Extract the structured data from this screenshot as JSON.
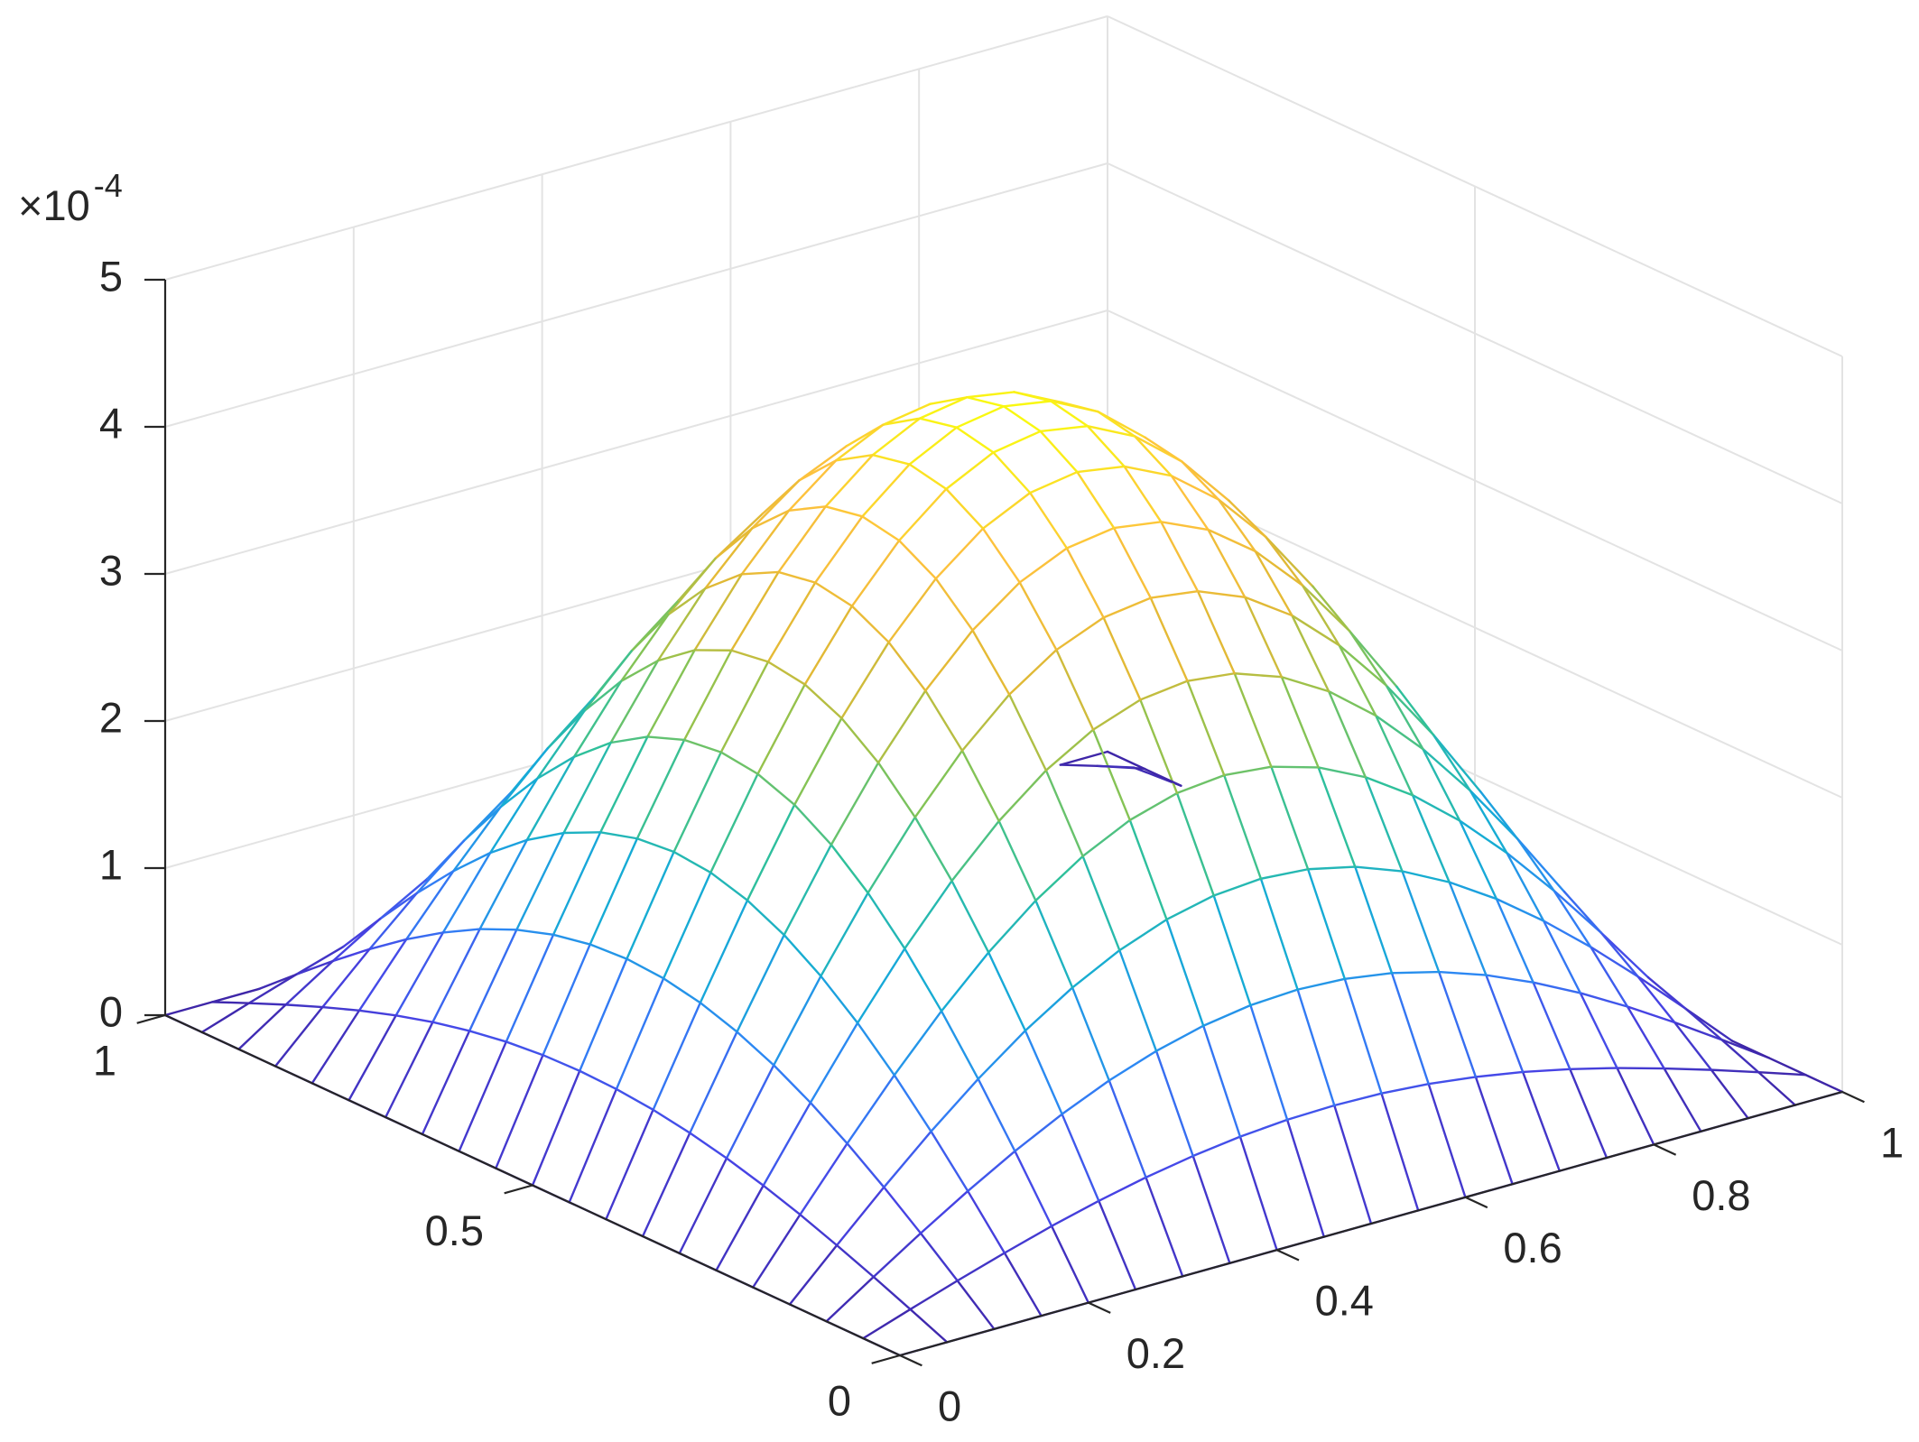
{
  "chart_data": {
    "type": "mesh",
    "x": [
      0,
      0.05,
      0.1,
      0.15,
      0.2,
      0.25,
      0.3,
      0.35,
      0.4,
      0.45,
      0.5,
      0.55,
      0.6,
      0.65,
      0.7,
      0.75,
      0.8,
      0.85,
      0.9,
      0.95,
      1
    ],
    "y": [
      0,
      0.05,
      0.1,
      0.15,
      0.2,
      0.25,
      0.3,
      0.35,
      0.4,
      0.45,
      0.5,
      0.55,
      0.6,
      0.65,
      0.7,
      0.75,
      0.8,
      0.85,
      0.9,
      0.95,
      1
    ],
    "z": [
      [
        0,
        0,
        0,
        0,
        0,
        0,
        0,
        0,
        0,
        0,
        0,
        0,
        0,
        0,
        0,
        0,
        0,
        0,
        0,
        0,
        0
      ],
      [
        0,
        0.108,
        0.213,
        0.312,
        0.405,
        0.487,
        0.557,
        0.613,
        0.655,
        0.68,
        0.688,
        0.68,
        0.655,
        0.613,
        0.557,
        0.487,
        0.405,
        0.312,
        0.213,
        0.108,
        0
      ],
      [
        0,
        0.213,
        0.42,
        0.617,
        0.799,
        0.961,
        1.1,
        1.211,
        1.293,
        1.343,
        1.36,
        1.343,
        1.293,
        1.211,
        1.1,
        0.961,
        0.799,
        0.617,
        0.42,
        0.213,
        0
      ],
      [
        0,
        0.312,
        0.617,
        0.907,
        1.174,
        1.413,
        1.616,
        1.78,
        1.9,
        1.973,
        1.998,
        1.973,
        1.9,
        1.78,
        1.616,
        1.413,
        1.174,
        0.907,
        0.617,
        0.312,
        0
      ],
      [
        0,
        0.405,
        0.799,
        1.174,
        1.52,
        1.829,
        2.092,
        2.304,
        2.46,
        2.554,
        2.586,
        2.554,
        2.46,
        2.304,
        2.092,
        1.829,
        1.52,
        1.174,
        0.799,
        0.405,
        0
      ],
      [
        0,
        0.487,
        0.961,
        1.413,
        1.829,
        2.2,
        2.517,
        2.772,
        2.959,
        3.073,
        3.111,
        3.073,
        2.959,
        2.772,
        2.517,
        2.2,
        1.829,
        1.413,
        0.961,
        0.487,
        0
      ],
      [
        0,
        0.557,
        1.1,
        1.616,
        2.092,
        2.517,
        2.88,
        3.172,
        3.386,
        3.516,
        3.56,
        3.516,
        3.386,
        3.172,
        2.88,
        2.517,
        2.092,
        1.616,
        1.1,
        0.557,
        0
      ],
      [
        0,
        0.613,
        1.211,
        1.78,
        2.304,
        2.772,
        3.172,
        3.493,
        3.729,
        3.872,
        3.92,
        3.872,
        3.729,
        3.493,
        3.172,
        2.772,
        2.304,
        1.78,
        1.211,
        0.613,
        0
      ],
      [
        0,
        0.655,
        1.293,
        1.9,
        2.46,
        2.959,
        3.386,
        3.729,
        3.98,
        4.133,
        4.185,
        4.133,
        3.98,
        3.729,
        3.386,
        2.959,
        2.46,
        1.9,
        1.293,
        0.655,
        0
      ],
      [
        0,
        0.68,
        1.343,
        1.973,
        2.554,
        3.073,
        3.516,
        3.872,
        4.133,
        4.292,
        4.346,
        4.292,
        4.133,
        3.872,
        3.516,
        3.073,
        2.554,
        1.973,
        1.343,
        0.68,
        0
      ],
      [
        0,
        0.688,
        1.36,
        1.998,
        2.586,
        3.111,
        3.56,
        3.92,
        4.185,
        4.346,
        4.4,
        4.346,
        4.185,
        3.92,
        3.56,
        3.111,
        2.586,
        1.998,
        1.36,
        0.688,
        0
      ],
      [
        0,
        0.68,
        1.343,
        1.973,
        2.554,
        3.073,
        3.516,
        3.872,
        4.133,
        4.292,
        4.346,
        4.292,
        4.133,
        3.872,
        3.516,
        3.073,
        2.554,
        1.973,
        1.343,
        0.68,
        0
      ],
      [
        0,
        0.655,
        1.293,
        1.9,
        2.46,
        2.959,
        3.386,
        3.729,
        3.98,
        4.133,
        4.185,
        4.133,
        3.98,
        3.729,
        3.386,
        2.959,
        2.46,
        1.9,
        1.293,
        0.655,
        0
      ],
      [
        0,
        0.613,
        1.211,
        1.78,
        2.304,
        2.772,
        3.172,
        3.493,
        3.729,
        3.872,
        3.92,
        3.872,
        3.729,
        3.493,
        3.172,
        2.772,
        2.304,
        1.78,
        1.211,
        0.613,
        0
      ],
      [
        0,
        0.557,
        1.1,
        1.616,
        2.092,
        2.517,
        2.88,
        3.172,
        3.386,
        3.516,
        3.56,
        3.516,
        3.386,
        3.172,
        2.88,
        2.517,
        2.092,
        1.616,
        1.1,
        0.557,
        0
      ],
      [
        0,
        0.487,
        0.961,
        1.413,
        1.829,
        2.2,
        2.517,
        2.772,
        2.959,
        3.073,
        3.111,
        3.073,
        2.959,
        2.772,
        2.517,
        2.2,
        1.829,
        1.413,
        0.961,
        0.487,
        0
      ],
      [
        0,
        0.405,
        0.799,
        1.174,
        1.52,
        1.829,
        2.092,
        2.304,
        2.46,
        2.554,
        2.586,
        2.554,
        2.46,
        2.304,
        2.092,
        1.829,
        1.52,
        1.174,
        0.799,
        0.405,
        0
      ],
      [
        0,
        0.312,
        0.617,
        0.907,
        1.174,
        1.413,
        1.616,
        1.78,
        1.9,
        1.973,
        1.998,
        1.973,
        1.9,
        1.78,
        1.616,
        1.413,
        1.174,
        0.907,
        0.617,
        0.312,
        0
      ],
      [
        0,
        0.213,
        0.42,
        0.617,
        0.799,
        0.961,
        1.1,
        1.211,
        1.293,
        1.343,
        1.36,
        1.343,
        1.293,
        1.211,
        1.1,
        0.961,
        0.799,
        0.617,
        0.42,
        0.213,
        0
      ],
      [
        0,
        0.108,
        0.213,
        0.312,
        0.405,
        0.487,
        0.557,
        0.613,
        0.655,
        0.68,
        0.688,
        0.68,
        0.655,
        0.613,
        0.557,
        0.487,
        0.405,
        0.312,
        0.213,
        0.108,
        0
      ],
      [
        0,
        0,
        0,
        0,
        0,
        0,
        0,
        0,
        0,
        0,
        0,
        0,
        0,
        0,
        0,
        0,
        0,
        0,
        0,
        0,
        0
      ]
    ],
    "xlim": [
      0,
      1
    ],
    "ylim": [
      0,
      1
    ],
    "zlim": [
      0,
      5
    ],
    "xticks": [
      0,
      0.2,
      0.4,
      0.6,
      0.8,
      1
    ],
    "yticks": [
      0,
      0.5,
      1
    ],
    "zticks": [
      0,
      1,
      2,
      3,
      4,
      5
    ],
    "z_multiplier": {
      "base": "×10",
      "exponent": "-4"
    },
    "colormap": [
      "#3e26a8",
      "#4745e7",
      "#2f84f6",
      "#16abd6",
      "#2fc09b",
      "#8cc34f",
      "#e3b935",
      "#fdc23d",
      "#f9fb0e"
    ],
    "grid": true
  }
}
